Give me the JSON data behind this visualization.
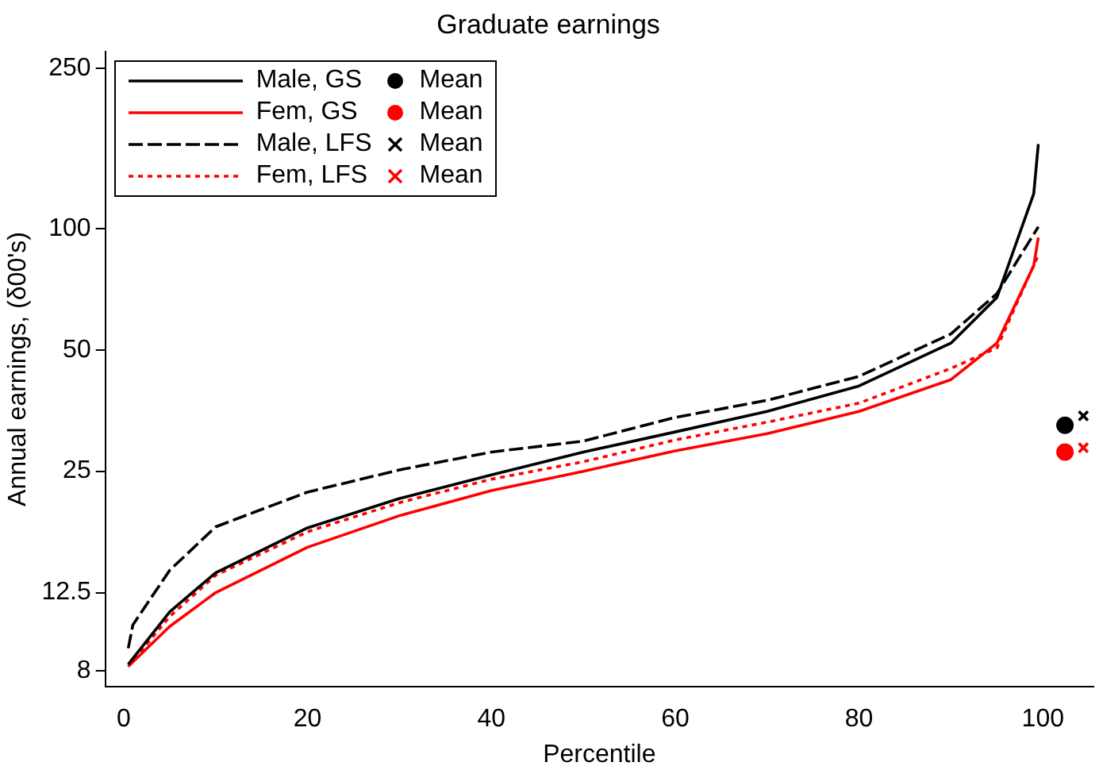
{
  "chart_data": {
    "type": "line",
    "title": "Graduate earnings",
    "xlabel": "Percentile",
    "ylabel": "Annual earnings, (δ00's)",
    "log": "y",
    "grid": false,
    "legend": "top left",
    "xlim": [
      -2,
      105.5
    ],
    "xticks": [
      0,
      20,
      40,
      60,
      80,
      100
    ],
    "ylim": [
      7.3,
      275
    ],
    "yticks": [
      8,
      12.5,
      25,
      50,
      100,
      250
    ],
    "series": [
      {
        "name": "Male, GS",
        "color": "#000000",
        "line_style": "solid",
        "marker": "none",
        "x": [
          0.5,
          5,
          10,
          20,
          30,
          40,
          50,
          60,
          70,
          80,
          90,
          95,
          99,
          99.5
        ],
        "values": [
          8.3,
          11.2,
          14.0,
          18.1,
          21.4,
          24.5,
          27.9,
          31.3,
          35.2,
          40.7,
          52,
          67.5,
          122,
          162
        ]
      },
      {
        "name": "Mean",
        "type": "scatter",
        "color": "#000000",
        "marker": "circle",
        "x": [
          102.4
        ],
        "values": [
          32.5
        ]
      },
      {
        "name": "Fem, GS",
        "color": "#ff0000",
        "line_style": "solid",
        "marker": "none",
        "x": [
          0.5,
          5,
          10,
          20,
          30,
          40,
          50,
          60,
          70,
          80,
          90,
          95,
          99,
          99.5
        ],
        "values": [
          8.2,
          10.3,
          12.5,
          16.2,
          19.4,
          22.4,
          25,
          28.1,
          31,
          35.2,
          42.2,
          52,
          80.9,
          95
        ]
      },
      {
        "name": "Mean",
        "type": "scatter",
        "color": "#ff0000",
        "marker": "circle",
        "x": [
          102.4
        ],
        "values": [
          27.9
        ]
      },
      {
        "name": "Male, LFS",
        "color": "#000000",
        "line_style": "dashed",
        "marker": "none",
        "x": [
          0.5,
          1,
          5,
          10,
          20,
          30,
          40,
          50,
          60,
          70,
          80,
          90,
          95,
          99.5
        ],
        "values": [
          9.1,
          10.4,
          14.2,
          18.2,
          22.2,
          25.2,
          27.9,
          29.7,
          34.0,
          37.5,
          43,
          54.8,
          69,
          101
        ]
      },
      {
        "name": "Mean",
        "type": "scatter",
        "color": "#000000",
        "marker": "cross",
        "x": [
          104.4
        ],
        "values": [
          34.3
        ]
      },
      {
        "name": "Fem, LFS",
        "color": "#ff0000",
        "line_style": "dotted",
        "marker": "none",
        "x": [
          0.5,
          5,
          10,
          20,
          30,
          40,
          50,
          60,
          70,
          80,
          90,
          95,
          99.5
        ],
        "values": [
          8.2,
          10.9,
          13.8,
          17.7,
          20.9,
          23.9,
          26.4,
          29.9,
          33.1,
          36.9,
          45,
          50.6,
          86
        ]
      },
      {
        "name": "Mean",
        "type": "scatter",
        "color": "#ff0000",
        "marker": "cross",
        "x": [
          104.4
        ],
        "values": [
          28.6
        ]
      }
    ]
  }
}
